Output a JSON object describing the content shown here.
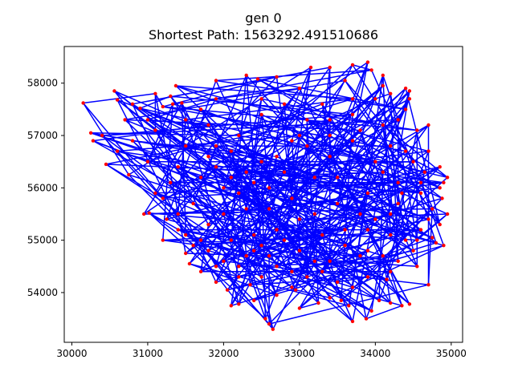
{
  "chart_data": {
    "type": "line",
    "title": "gen 0",
    "subtitle": "Shortest Path: 1563292.491510686",
    "xlabel": "",
    "ylabel": "",
    "xlim": [
      29900,
      35150
    ],
    "ylim": [
      53050,
      58700
    ],
    "x_ticks": [
      30000,
      31000,
      32000,
      33000,
      34000,
      35000
    ],
    "y_ticks": [
      54000,
      55000,
      56000,
      57000,
      58000
    ],
    "x_tick_labels": [
      "30000",
      "31000",
      "32000",
      "33000",
      "34000",
      "35000"
    ],
    "y_tick_labels": [
      "54000",
      "55000",
      "56000",
      "57000",
      "58000"
    ],
    "grid": false,
    "legend": "none",
    "line_color": "#0000ff",
    "point_color": "#ff0000",
    "points": [
      [
        30150,
        57620
      ],
      [
        30250,
        57050
      ],
      [
        30280,
        56900
      ],
      [
        30450,
        56450
      ],
      [
        30560,
        57850
      ],
      [
        30600,
        57680
      ],
      [
        30700,
        57300
      ],
      [
        30750,
        56250
      ],
      [
        30900,
        57520
      ],
      [
        30950,
        55500
      ],
      [
        31020,
        55520
      ],
      [
        31100,
        57800
      ],
      [
        31200,
        57550
      ],
      [
        31330,
        57600
      ],
      [
        31370,
        57950
      ],
      [
        31450,
        57620
      ],
      [
        31200,
        55800
      ],
      [
        31400,
        55200
      ],
      [
        31500,
        54750
      ],
      [
        31550,
        54550
      ],
      [
        31700,
        54400
      ],
      [
        31900,
        54200
      ],
      [
        32050,
        54050
      ],
      [
        32100,
        53750
      ],
      [
        32200,
        53780
      ],
      [
        32350,
        54150
      ],
      [
        32400,
        53850
      ],
      [
        32550,
        53500
      ],
      [
        32600,
        53400
      ],
      [
        32650,
        53300
      ],
      [
        32700,
        53950
      ],
      [
        32950,
        54050
      ],
      [
        33000,
        53700
      ],
      [
        33250,
        53800
      ],
      [
        33400,
        53900
      ],
      [
        33550,
        53850
      ],
      [
        33650,
        53750
      ],
      [
        33700,
        53450
      ],
      [
        33800,
        54700
      ],
      [
        33880,
        53500
      ],
      [
        33950,
        53650
      ],
      [
        34050,
        53850
      ],
      [
        34150,
        54250
      ],
      [
        34200,
        53800
      ],
      [
        34350,
        53750
      ],
      [
        34450,
        53780
      ],
      [
        34550,
        54500
      ],
      [
        34700,
        54150
      ],
      [
        34800,
        54950
      ],
      [
        34900,
        54900
      ],
      [
        34850,
        55300
      ],
      [
        34880,
        55800
      ],
      [
        34900,
        56100
      ],
      [
        34950,
        56200
      ],
      [
        34700,
        56700
      ],
      [
        34550,
        57100
      ],
      [
        34450,
        57700
      ],
      [
        34400,
        57900
      ],
      [
        34200,
        57800
      ],
      [
        34100,
        58150
      ],
      [
        33900,
        58400
      ],
      [
        33950,
        58250
      ],
      [
        33700,
        58350
      ],
      [
        33400,
        58300
      ],
      [
        33150,
        58300
      ],
      [
        32700,
        58120
      ],
      [
        32450,
        58080
      ],
      [
        32300,
        58150
      ],
      [
        31900,
        58050
      ],
      [
        31700,
        57500
      ],
      [
        31800,
        57200
      ],
      [
        32100,
        56700
      ],
      [
        32300,
        56300
      ],
      [
        32600,
        56000
      ],
      [
        32900,
        55800
      ],
      [
        33200,
        56200
      ],
      [
        33400,
        56600
      ],
      [
        33700,
        56900
      ],
      [
        34000,
        56500
      ],
      [
        34300,
        56100
      ],
      [
        34600,
        55900
      ],
      [
        34200,
        55500
      ],
      [
        33900,
        55200
      ],
      [
        33600,
        54900
      ],
      [
        33300,
        55100
      ],
      [
        33000,
        55400
      ],
      [
        32700,
        55200
      ],
      [
        32400,
        54800
      ],
      [
        32100,
        55000
      ],
      [
        31800,
        55300
      ],
      [
        31600,
        55700
      ],
      [
        31300,
        56100
      ],
      [
        31000,
        56500
      ],
      [
        30800,
        56900
      ],
      [
        31100,
        57100
      ],
      [
        31500,
        56800
      ],
      [
        31900,
        56400
      ],
      [
        32200,
        57000
      ],
      [
        32500,
        57400
      ],
      [
        32800,
        57600
      ],
      [
        33100,
        57300
      ],
      [
        33400,
        57000
      ],
      [
        33700,
        57400
      ],
      [
        34000,
        57700
      ],
      [
        34300,
        57300
      ],
      [
        34500,
        56500
      ],
      [
        34750,
        55600
      ],
      [
        34400,
        55000
      ],
      [
        34100,
        54700
      ],
      [
        33800,
        55500
      ],
      [
        33500,
        55700
      ],
      [
        33200,
        54600
      ],
      [
        32900,
        54400
      ],
      [
        32600,
        54700
      ],
      [
        32300,
        55600
      ],
      [
        32000,
        56000
      ],
      [
        31700,
        56200
      ],
      [
        31400,
        55500
      ],
      [
        31200,
        55000
      ],
      [
        31600,
        54900
      ],
      [
        32000,
        54600
      ],
      [
        32400,
        55100
      ],
      [
        32800,
        56300
      ],
      [
        33100,
        56800
      ],
      [
        33500,
        56200
      ],
      [
        33900,
        55900
      ],
      [
        34200,
        56800
      ],
      [
        34400,
        57500
      ],
      [
        34650,
        56300
      ],
      [
        34850,
        56000
      ],
      [
        34600,
        55200
      ],
      [
        34300,
        54600
      ],
      [
        33900,
        54300
      ],
      [
        33500,
        54200
      ],
      [
        33000,
        54800
      ],
      [
        32600,
        55600
      ],
      [
        32200,
        55900
      ],
      [
        31900,
        56800
      ],
      [
        31500,
        57300
      ],
      [
        31000,
        57300
      ],
      [
        30600,
        56700
      ],
      [
        30400,
        57000
      ],
      [
        30800,
        57600
      ],
      [
        31300,
        57750
      ],
      [
        31900,
        57700
      ],
      [
        32500,
        57700
      ],
      [
        33000,
        57900
      ],
      [
        33600,
        58050
      ],
      [
        34100,
        57950
      ],
      [
        34450,
        57850
      ],
      [
        34700,
        57200
      ],
      [
        34850,
        56400
      ],
      [
        34950,
        55500
      ],
      [
        34750,
        55050
      ],
      [
        34500,
        54800
      ],
      [
        34200,
        54400
      ],
      [
        33700,
        54100
      ],
      [
        33300,
        54400
      ],
      [
        32900,
        54100
      ],
      [
        32500,
        54300
      ],
      [
        32200,
        54500
      ],
      [
        31800,
        54800
      ],
      [
        31500,
        55100
      ],
      [
        31250,
        55400
      ],
      [
        31100,
        55900
      ],
      [
        31400,
        56400
      ],
      [
        31800,
        56600
      ],
      [
        32100,
        56200
      ],
      [
        32500,
        56500
      ],
      [
        32900,
        56900
      ],
      [
        33300,
        57600
      ],
      [
        33700,
        57700
      ],
      [
        34100,
        57200
      ],
      [
        34400,
        56700
      ],
      [
        34600,
        56100
      ],
      [
        34300,
        55700
      ],
      [
        34000,
        55400
      ],
      [
        33600,
        55200
      ],
      [
        33200,
        55500
      ],
      [
        32800,
        55000
      ],
      [
        32500,
        54900
      ],
      [
        32200,
        54300
      ],
      [
        31900,
        54500
      ],
      [
        31700,
        55000
      ],
      [
        32000,
        55500
      ],
      [
        32400,
        56100
      ],
      [
        32700,
        56600
      ],
      [
        33000,
        57000
      ],
      [
        33400,
        57300
      ],
      [
        33800,
        57100
      ],
      [
        34100,
        56300
      ],
      [
        34350,
        55900
      ],
      [
        34700,
        55400
      ],
      [
        34550,
        55000
      ],
      [
        34200,
        55100
      ],
      [
        33900,
        54800
      ],
      [
        33400,
        54600
      ],
      [
        33100,
        54300
      ],
      [
        32700,
        54500
      ],
      [
        32300,
        54700
      ]
    ]
  }
}
